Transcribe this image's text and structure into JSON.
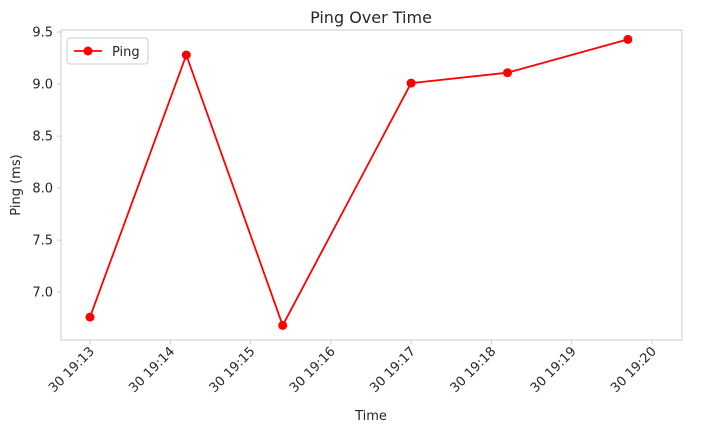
{
  "chart_data": {
    "type": "line",
    "title": "Ping Over Time",
    "xlabel": "Time",
    "ylabel": "Ping (ms)",
    "x_ticks": [
      "30 19:13",
      "30 19:14",
      "30 19:15",
      "30 19:16",
      "30 19:17",
      "30 19:18",
      "30 19:19",
      "30 19:20"
    ],
    "y_ticks": [
      "7.0",
      "7.5",
      "8.0",
      "8.5",
      "9.0",
      "9.5"
    ],
    "ylim": [
      6.54,
      9.52
    ],
    "grid": false,
    "legend_position": "top-left",
    "series": [
      {
        "name": "Ping",
        "color": "#ff0000",
        "marker": "circle",
        "x": [
          "30 19:13",
          "30 19:14.2",
          "30 19:15.4",
          "30 19:17",
          "30 19:18.2",
          "30 19:19.7"
        ],
        "values": [
          6.76,
          9.28,
          6.68,
          9.01,
          9.11,
          9.43
        ]
      }
    ]
  }
}
